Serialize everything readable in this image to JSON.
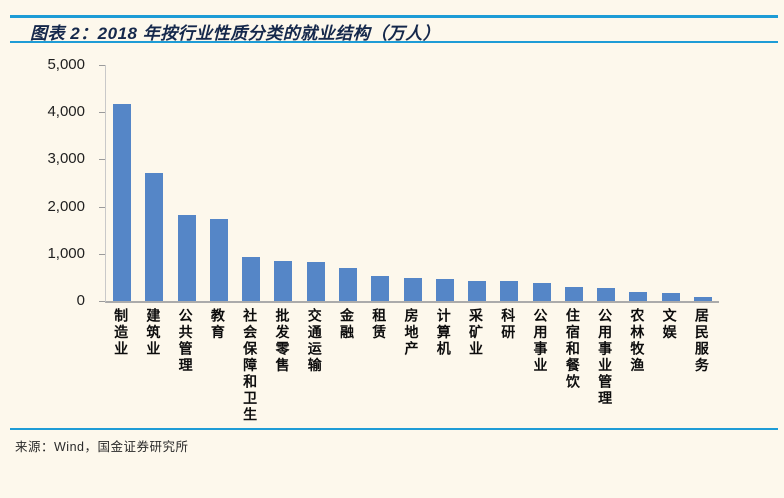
{
  "figure": {
    "title": "图表 2：2018 年按行业性质分类的就业结构（万人）"
  },
  "source": {
    "text": "来源：Wind，国金证券研究所"
  },
  "colors": {
    "background": "#fdf8ec",
    "rule_blue": "#1e9cd6",
    "title_navy": "#15284b",
    "bar_blue": "#5586c7",
    "axis_gray": "#ababab"
  },
  "chart_data": {
    "type": "bar",
    "title": "2018 年按行业性质分类的就业结构（万人）",
    "categories": [
      "制造业",
      "建筑业",
      "公共管理",
      "教育",
      "社会保障和卫生",
      "批发零售",
      "交通运输",
      "金融",
      "租赁",
      "房地产",
      "计算机",
      "采矿业",
      "科研",
      "公用事业",
      "住宿和餐饮",
      "公用事业管理",
      "农林牧渔",
      "文娱",
      "居民服务"
    ],
    "values": [
      4180,
      2720,
      1830,
      1740,
      940,
      850,
      820,
      690,
      540,
      480,
      460,
      430,
      415,
      385,
      290,
      285,
      185,
      160,
      80
    ],
    "xlabel": "",
    "ylabel": "",
    "ylim": [
      0,
      5000
    ],
    "yticks": [
      0,
      1000,
      2000,
      3000,
      4000,
      5000
    ],
    "ytick_labels": [
      "0",
      "1,000",
      "2,000",
      "3,000",
      "4,000",
      "5,000"
    ],
    "grid": false,
    "legend_position": "none",
    "bar_color": "#5586c7"
  }
}
